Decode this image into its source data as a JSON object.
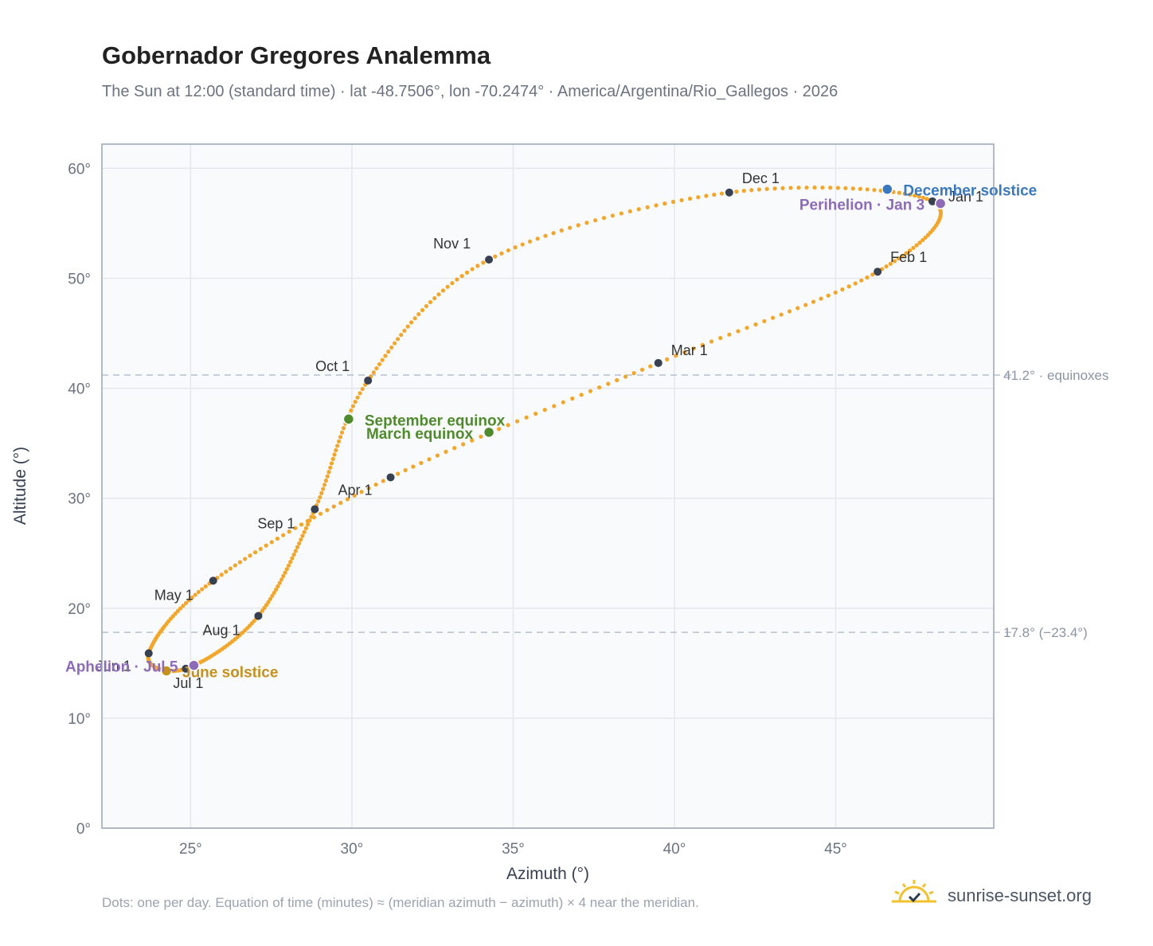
{
  "title": "Gobernador Gregores Analemma",
  "subtitle": "The Sun at 12:00 (standard time) · lat -48.7506°, lon -70.2474° · America/Argentina/Rio_Gallegos · 2026",
  "footnote": "Dots: one per day. Equation of time (minutes) ≈ (meridian azimuth − azimuth) × 4 near the meridian.",
  "brand": {
    "name": "sunrise-sunset.org",
    "icon": "sun-logo-icon"
  },
  "colors": {
    "path": "#f2a62a",
    "month": "#374151",
    "equinox": "#4f8a2c",
    "june_solstice": "#c8901c",
    "december_solstice": "#3a78c0",
    "apsis": "#8e6bb8",
    "grid": "#e5e7eb",
    "plot_bg": "#f8fafc",
    "axis": "#9aa5b4"
  },
  "chart_data": {
    "type": "scatter",
    "xlabel": "Azimuth (°)",
    "ylabel": "Altitude (°)",
    "xlim": [
      22.25,
      49.9
    ],
    "ylim": [
      0,
      62.2
    ],
    "x_ticks": [
      25,
      30,
      35,
      40,
      45
    ],
    "x_tick_labels": [
      "25°",
      "30°",
      "35°",
      "40°",
      "45°"
    ],
    "y_ticks": [
      0,
      10,
      20,
      30,
      40,
      50,
      60
    ],
    "y_tick_labels": [
      "0°",
      "10°",
      "20°",
      "30°",
      "40°",
      "50°",
      "60°"
    ],
    "grid": true,
    "reference_lines": [
      {
        "y": 41.2,
        "label": "41.2° · equinoxes"
      },
      {
        "y": 17.8,
        "label": "17.8° (−23.4°)"
      }
    ],
    "series": [
      {
        "name": "",
        "points_per": "day",
        "anchors": [
          {
            "date": "Jan 1",
            "x": 48.0,
            "y": 57.0
          },
          {
            "date": "Feb 1",
            "x": 46.3,
            "y": 50.6
          },
          {
            "date": "Mar 1",
            "x": 39.5,
            "y": 42.3
          },
          {
            "date": "Apr 1",
            "x": 31.2,
            "y": 31.9
          },
          {
            "date": "May 1",
            "x": 25.7,
            "y": 22.5
          },
          {
            "date": "Jun 1",
            "x": 23.7,
            "y": 15.9
          },
          {
            "date": "Jul 1",
            "x": 24.85,
            "y": 14.5
          },
          {
            "date": "Aug 1",
            "x": 27.1,
            "y": 19.3
          },
          {
            "date": "Sep 1",
            "x": 28.85,
            "y": 29.0
          },
          {
            "date": "Oct 1",
            "x": 30.5,
            "y": 40.7
          },
          {
            "date": "Nov 1",
            "x": 34.25,
            "y": 51.7
          },
          {
            "date": "Dec 1",
            "x": 41.7,
            "y": 57.8
          },
          {
            "date": "Jan 1",
            "x": 48.0,
            "y": 57.0
          }
        ]
      }
    ],
    "month_markers": [
      {
        "label": "Jan 1",
        "x": 48.0,
        "y": 57.0
      },
      {
        "label": "Feb 1",
        "x": 46.3,
        "y": 50.6
      },
      {
        "label": "Mar 1",
        "x": 39.5,
        "y": 42.3
      },
      {
        "label": "Apr 1",
        "x": 31.2,
        "y": 31.9
      },
      {
        "label": "May 1",
        "x": 25.7,
        "y": 22.5
      },
      {
        "label": "Jun 1",
        "x": 23.7,
        "y": 15.9
      },
      {
        "label": "Jul 1",
        "x": 24.85,
        "y": 14.5
      },
      {
        "label": "Aug 1",
        "x": 27.1,
        "y": 19.3
      },
      {
        "label": "Sep 1",
        "x": 28.85,
        "y": 29.0
      },
      {
        "label": "Oct 1",
        "x": 30.5,
        "y": 40.7
      },
      {
        "label": "Nov 1",
        "x": 34.25,
        "y": 51.7
      },
      {
        "label": "Dec 1",
        "x": 41.7,
        "y": 57.8
      }
    ],
    "events": [
      {
        "label": "September equinox",
        "x": 29.9,
        "y": 37.2,
        "kind": "equinox"
      },
      {
        "label": "March equinox",
        "x": 34.25,
        "y": 36.0,
        "kind": "equinox"
      },
      {
        "label": "June solstice",
        "x": 24.25,
        "y": 14.3,
        "kind": "june_solstice"
      },
      {
        "label": "December solstice",
        "x": 46.6,
        "y": 58.1,
        "kind": "december_solstice"
      },
      {
        "label": "Aphelion · Jul 5",
        "x": 25.1,
        "y": 14.8,
        "kind": "apsis"
      },
      {
        "label": "Perihelion · Jan 3",
        "x": 48.25,
        "y": 56.8,
        "kind": "apsis"
      }
    ]
  }
}
